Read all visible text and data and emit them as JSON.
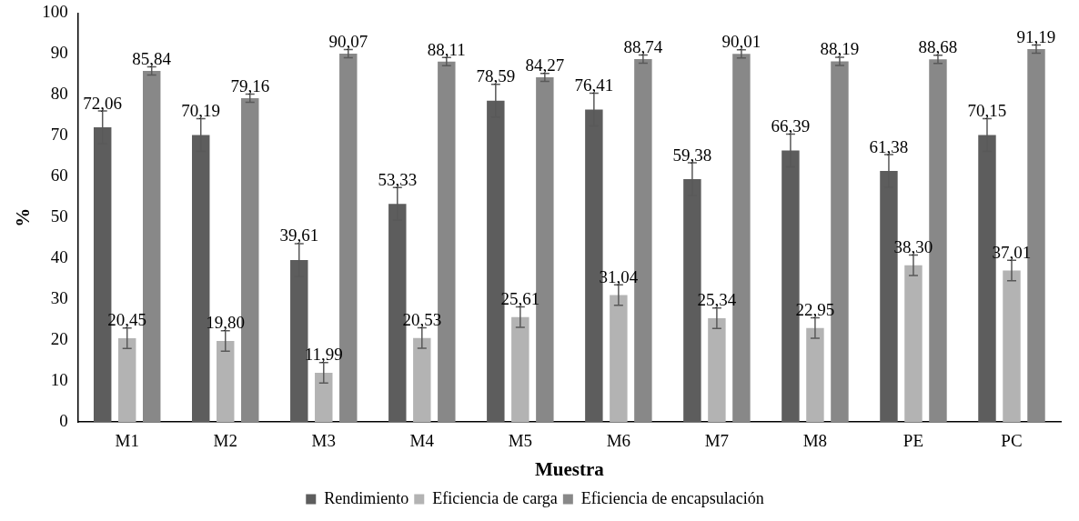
{
  "chart_data": {
    "type": "bar",
    "xlabel": "Muestra",
    "ylabel": "%",
    "categories": [
      "M1",
      "M2",
      "M3",
      "M4",
      "M5",
      "M6",
      "M7",
      "M8",
      "PE",
      "PC"
    ],
    "series": [
      {
        "name": "Rendimiento",
        "color": "#5d5d5d",
        "values": [
          72.06,
          70.19,
          39.61,
          53.33,
          78.59,
          76.41,
          59.38,
          66.39,
          61.38,
          70.15
        ],
        "errors": [
          4,
          4,
          4,
          4,
          4,
          4,
          4,
          4,
          4,
          4
        ],
        "value_labels": [
          "72,06",
          "70,19",
          "39,61",
          "53,33",
          "78,59",
          "76,41",
          "59,38",
          "66,39",
          "61,38",
          "70,15"
        ]
      },
      {
        "name": "Eficiencia de carga",
        "color": "#b3b3b3",
        "values": [
          20.45,
          19.8,
          11.99,
          20.53,
          25.61,
          31.04,
          25.34,
          22.95,
          38.3,
          37.01
        ],
        "errors": [
          2.5,
          2.5,
          2.5,
          2.5,
          2.5,
          2.5,
          2.5,
          2.5,
          2.5,
          2.5
        ],
        "value_labels": [
          "20,45",
          "19,80",
          "11,99",
          "20,53",
          "25,61",
          "31,04",
          "25,34",
          "22,95",
          "38,30",
          "37,01"
        ]
      },
      {
        "name": "Eficiencia de encapsulación",
        "color": "#888888",
        "values": [
          85.84,
          79.16,
          90.07,
          88.11,
          84.27,
          88.74,
          90.01,
          88.19,
          88.68,
          91.19
        ],
        "errors": [
          1,
          1,
          1,
          1,
          1,
          1,
          1,
          1,
          1,
          1
        ],
        "value_labels": [
          "85,84",
          "79,16",
          "90,07",
          "88,11",
          "84,27",
          "88,74",
          "90,01",
          "88,19",
          "88,68",
          "91,19"
        ]
      }
    ],
    "ylim": [
      0,
      100
    ],
    "yticks": [
      0,
      10,
      20,
      30,
      40,
      50,
      60,
      70,
      80,
      90,
      100
    ],
    "grid": false,
    "legend": "bottom"
  }
}
